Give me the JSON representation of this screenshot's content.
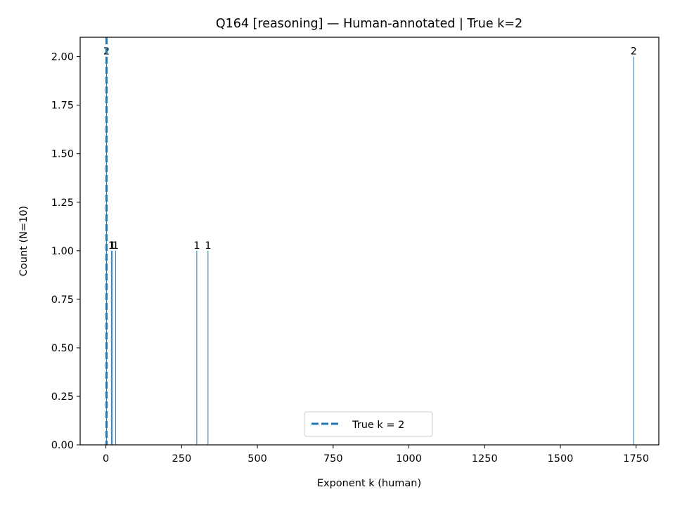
{
  "chart_data": {
    "type": "bar",
    "title": "Q164 [reasoning] — Human-annotated | True k=2",
    "xlabel": "Exponent k (human)",
    "ylabel": "Count (N=10)",
    "xlim": [
      -85,
      1825
    ],
    "ylim": [
      0,
      2.1
    ],
    "xticks": [
      0,
      250,
      500,
      750,
      1000,
      1250,
      1500,
      1750
    ],
    "yticks": [
      "0.00",
      "0.25",
      "0.50",
      "0.75",
      "1.00",
      "1.25",
      "1.50",
      "1.75",
      "2.00"
    ],
    "bar_color": "#1f77b4",
    "bars": [
      {
        "x": 2,
        "count": 2,
        "label": "2"
      },
      {
        "x": 18,
        "count": 1,
        "label": "1"
      },
      {
        "x": 22,
        "count": 1,
        "label": "1"
      },
      {
        "x": 32,
        "count": 1,
        "label": "1"
      },
      {
        "x": 300,
        "count": 1,
        "label": "1"
      },
      {
        "x": 337,
        "count": 1,
        "label": "1"
      },
      {
        "x": 1742,
        "count": 2,
        "label": "2"
      }
    ],
    "true_k": {
      "value": 2,
      "color": "#1f77b4",
      "style": "dashed"
    },
    "legend": {
      "position": "bottom-center",
      "label": "True k = 2"
    },
    "grid": false
  }
}
